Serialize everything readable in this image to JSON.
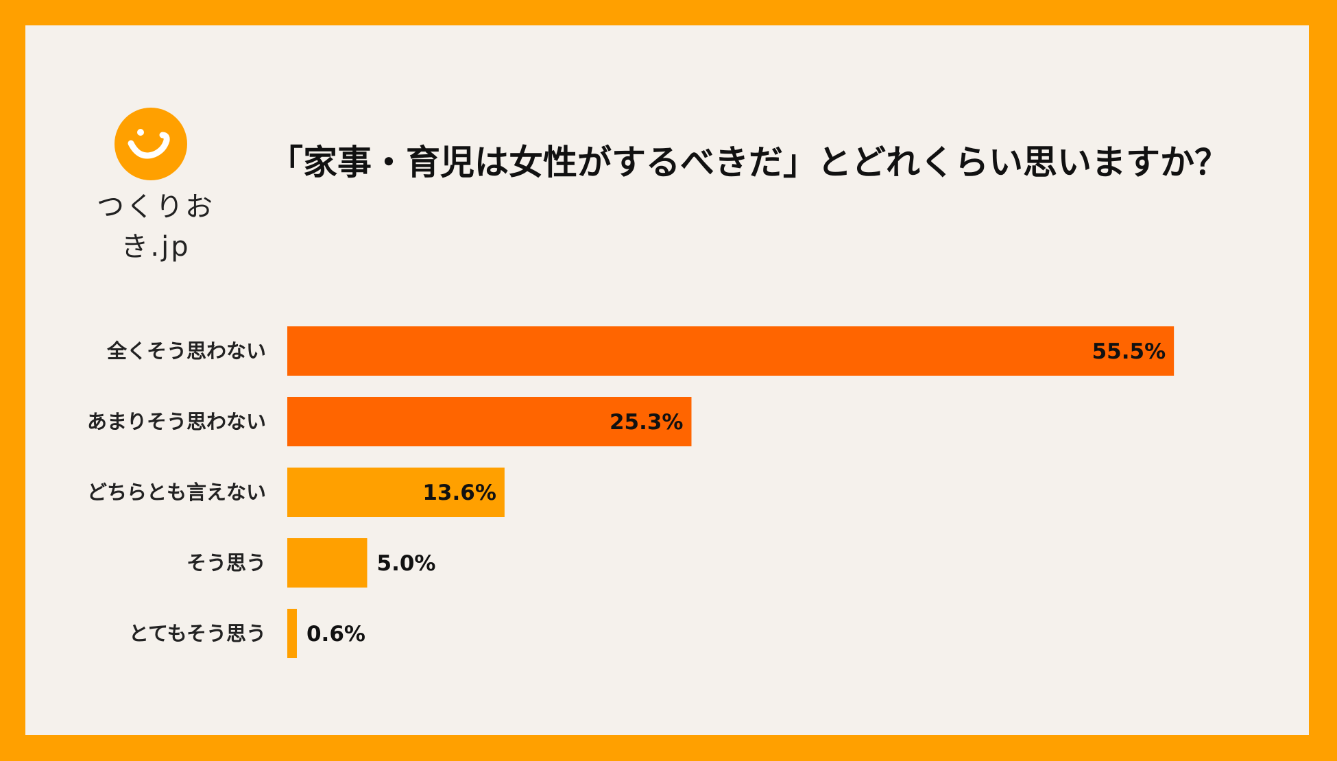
{
  "logo": {
    "text": "つくりおき.jp",
    "color": "#FFA000"
  },
  "title": "「家事・育児は女性がするべきだ」とどれくらい思いますか？",
  "colors": {
    "frame": "#FFA000",
    "background": "#F5F1EC",
    "dark_bar": "#FF6500",
    "light_bar": "#FFA000"
  },
  "chart_data": {
    "type": "bar",
    "orientation": "horizontal",
    "title": "「家事・育児は女性がするべきだ」とどれくらい思いますか？",
    "categories": [
      "全くそう思わない",
      "あまりそう思わない",
      "どちらとも言えない",
      "そう思う",
      "とてもそう思う"
    ],
    "values": [
      55.5,
      25.3,
      13.6,
      5.0,
      0.6
    ],
    "value_labels": [
      "55.5%",
      "25.3%",
      "13.6%",
      "5.0%",
      "0.6%"
    ],
    "bar_colors": [
      "#FF6500",
      "#FF6500",
      "#FFA000",
      "#FFA000",
      "#FFA000"
    ],
    "unit": "%",
    "grid": false,
    "legend": "none"
  }
}
